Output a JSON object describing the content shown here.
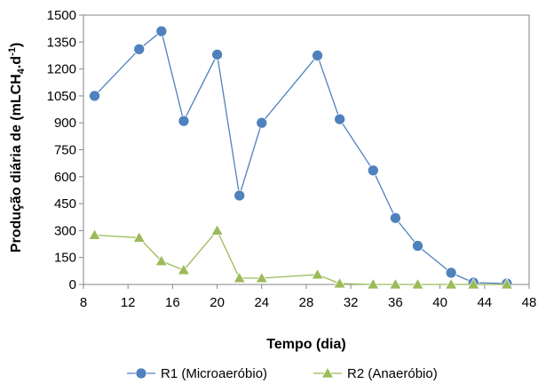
{
  "chart_data": {
    "type": "line",
    "xlabel": "Tempo (dia)",
    "ylabel_main": "Produção diária de (mLCH",
    "ylabel_sub": "4",
    "ylabel_mid": ".d",
    "ylabel_sup": "-1",
    "ylabel_end": ")",
    "xlim": [
      8,
      48
    ],
    "ylim": [
      0,
      1500
    ],
    "xticks": [
      8,
      12,
      16,
      20,
      24,
      28,
      32,
      36,
      40,
      44,
      48
    ],
    "yticks": [
      0,
      150,
      300,
      450,
      600,
      750,
      900,
      1050,
      1200,
      1350,
      1500
    ],
    "grid": false,
    "legend_position": "bottom",
    "series": [
      {
        "name": "R1 (Microaeróbio)",
        "marker": "circle",
        "color": "#4F81BD",
        "fill": "#4F81BD",
        "x": [
          9,
          13,
          15,
          17,
          20,
          22,
          24,
          29,
          31,
          34,
          36,
          38,
          41,
          43,
          46
        ],
        "y": [
          1050,
          1310,
          1410,
          910,
          1280,
          495,
          900,
          1275,
          920,
          635,
          370,
          215,
          65,
          10,
          5
        ]
      },
      {
        "name": "R2 (Anaeróbio)",
        "marker": "triangle",
        "color": "#9BBB59",
        "fill": "#9BBB59",
        "x": [
          9,
          13,
          15,
          17,
          20,
          22,
          24,
          29,
          31,
          34,
          36,
          38,
          41,
          43,
          46
        ],
        "y": [
          275,
          260,
          130,
          80,
          300,
          35,
          35,
          55,
          5,
          0,
          0,
          0,
          0,
          0,
          0
        ]
      }
    ]
  }
}
